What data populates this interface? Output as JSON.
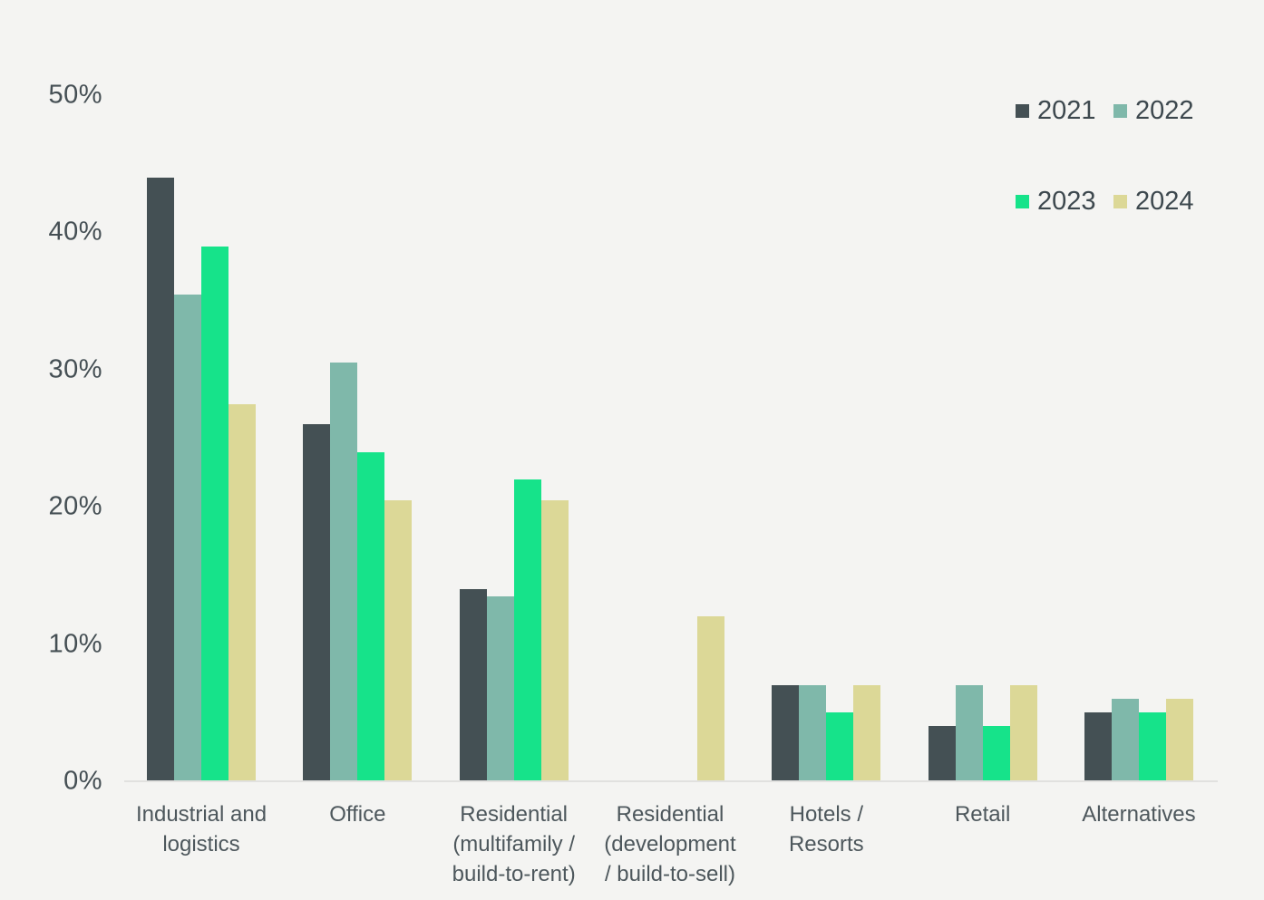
{
  "chart_data": {
    "type": "bar",
    "title": "",
    "categories": [
      "Industrial and\nlogistics",
      "Office",
      "Residential\n(multifamily /\nbuild-to-rent)",
      "Residential\n(development\n/ build-to-sell)",
      "Hotels /\nResorts",
      "Retail",
      "Alternatives"
    ],
    "series": [
      {
        "name": "2021",
        "color": "#445054",
        "values": [
          44,
          26,
          14,
          0,
          7,
          4,
          5
        ]
      },
      {
        "name": "2022",
        "color": "#7fb8aa",
        "values": [
          35.5,
          30.5,
          13.5,
          0,
          7,
          7,
          6
        ]
      },
      {
        "name": "2023",
        "color": "#16e38a",
        "values": [
          39,
          24,
          22,
          0,
          5,
          4,
          5
        ]
      },
      {
        "name": "2024",
        "color": "#dcd897",
        "values": [
          27.5,
          20.5,
          20.5,
          12,
          7,
          7,
          6
        ]
      }
    ],
    "y_ticks": [
      "0%",
      "10%",
      "20%",
      "30%",
      "40%",
      "50%"
    ],
    "y_tick_values": [
      0,
      10,
      20,
      30,
      40,
      50
    ],
    "ylim": [
      0,
      50
    ],
    "grid": false,
    "legend_position": "top-right",
    "background_color": "#f4f4f2",
    "axis_line_color": "#e1e1df",
    "tick_text_color": "#454f54",
    "category_text_color": "#4d575c",
    "legend_text_color": "#3d484e"
  }
}
